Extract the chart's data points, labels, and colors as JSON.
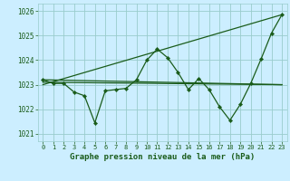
{
  "xlabel": "Graphe pression niveau de la mer (hPa)",
  "background_color": "#cceeff",
  "grid_color": "#99cccc",
  "line_color": "#1a5c1a",
  "xlim": [
    -0.5,
    23.5
  ],
  "ylim": [
    1020.7,
    1026.3
  ],
  "yticks": [
    1021,
    1022,
    1023,
    1024,
    1025,
    1026
  ],
  "xticks": [
    0,
    1,
    2,
    3,
    4,
    5,
    6,
    7,
    8,
    9,
    10,
    11,
    12,
    13,
    14,
    15,
    16,
    17,
    18,
    19,
    20,
    21,
    22,
    23
  ],
  "series1_x": [
    0,
    1,
    2,
    3,
    4,
    5,
    6,
    7,
    8,
    9,
    10,
    11,
    12,
    13,
    14,
    15,
    16,
    17,
    18,
    19,
    20,
    21,
    22,
    23
  ],
  "series1_y": [
    1023.2,
    1023.05,
    1023.05,
    1022.7,
    1022.55,
    1021.45,
    1022.75,
    1022.8,
    1022.85,
    1023.2,
    1024.0,
    1024.45,
    1024.1,
    1023.5,
    1022.8,
    1023.25,
    1022.8,
    1022.1,
    1021.55,
    1022.2,
    1023.05,
    1024.05,
    1025.1,
    1025.85
  ],
  "trend1_x": [
    0,
    23
  ],
  "trend1_y": [
    1023.1,
    1023.0
  ],
  "trend2_x": [
    0,
    23
  ],
  "trend2_y": [
    1023.0,
    1025.85
  ],
  "trend3_x": [
    0,
    23
  ],
  "trend3_y": [
    1023.2,
    1023.0
  ]
}
